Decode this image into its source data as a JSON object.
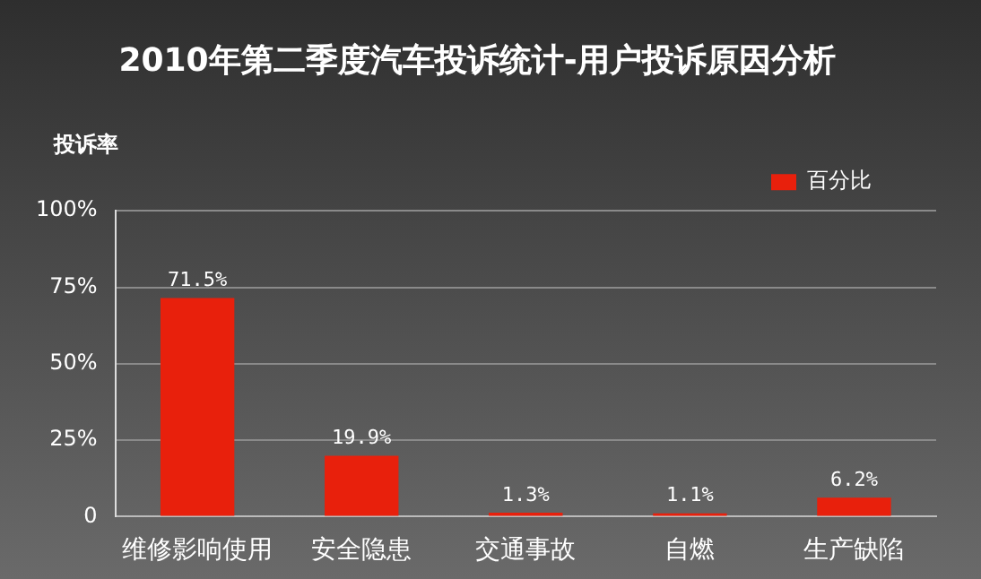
{
  "chart_data": {
    "type": "bar",
    "title": "2010年第二季度汽车投诉统计-用户投诉原因分析",
    "ylabel": "投诉率",
    "categories": [
      "维修影响使用",
      "安全隐患",
      "交通事故",
      "自燃",
      "生产缺陷"
    ],
    "series": [
      {
        "name": "百分比",
        "color": "#e8200c",
        "values": [
          71.5,
          19.9,
          1.3,
          1.1,
          6.2
        ]
      }
    ],
    "value_labels": [
      "71.5%",
      "19.9%",
      "1.3%",
      "1.1%",
      "6.2%"
    ],
    "ylim": [
      0,
      100
    ],
    "yticks": [
      {
        "value": 0,
        "label": "0"
      },
      {
        "value": 25,
        "label": "25%"
      },
      {
        "value": 50,
        "label": "50%"
      },
      {
        "value": 75,
        "label": "75%"
      },
      {
        "value": 100,
        "label": "100%"
      }
    ],
    "grid": "y",
    "legend": "top right"
  }
}
